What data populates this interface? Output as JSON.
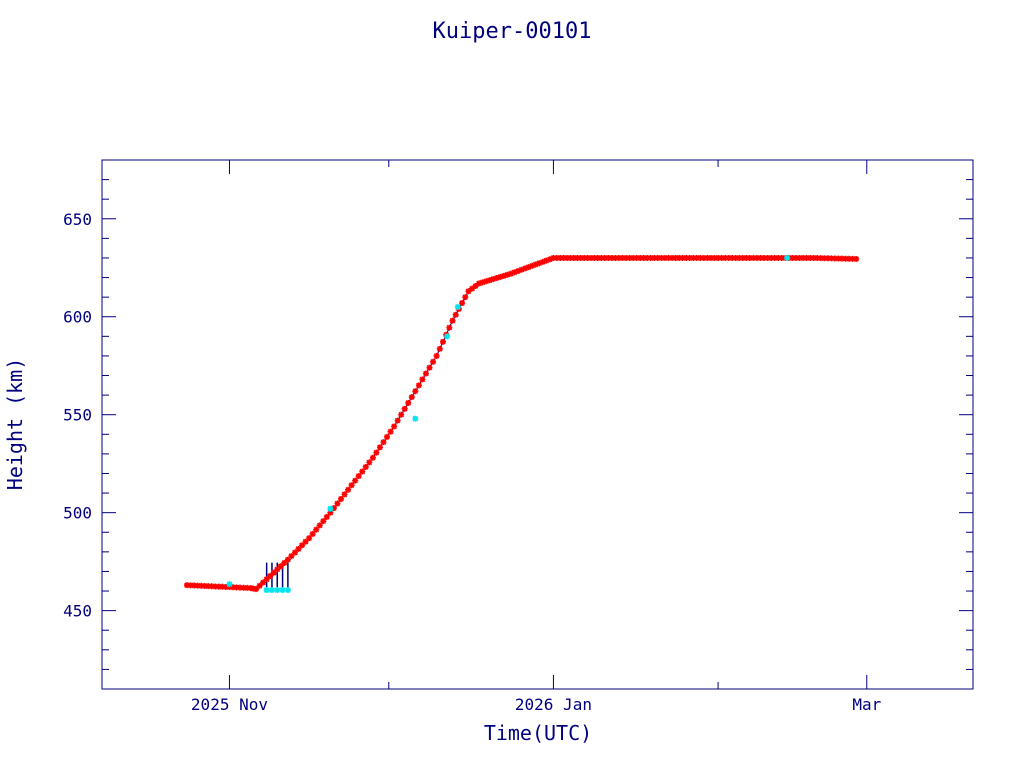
{
  "chart_data": {
    "type": "scatter",
    "title": "Kuiper-00101",
    "xlabel": "Time(UTC)",
    "ylabel": "Height (km)",
    "x_axis_type": "date",
    "xlim": [
      "2025-10-08",
      "2026-03-21"
    ],
    "ylim": [
      410,
      680
    ],
    "y_ticks": [
      450,
      500,
      550,
      600,
      650
    ],
    "x_ticks": [
      {
        "date": "2025-11-01",
        "label": "2025 Nov"
      },
      {
        "date": "2026-01-01",
        "label": "2026 Jan"
      },
      {
        "date": "2026-03-01",
        "label": "Mar"
      }
    ],
    "grid": false,
    "legend": "none",
    "colors": {
      "axes": "#00007f",
      "primary": "#ff0000",
      "secondary": "#00e5ee",
      "connector": "#00007f"
    },
    "series": [
      {
        "marker_color": "#ff0000",
        "x": [
          "2025-10-24",
          "2025-10-28",
          "2025-11-01",
          "2025-11-05",
          "2025-11-06",
          "2025-11-08",
          "2025-11-10",
          "2025-11-12",
          "2025-11-16",
          "2025-11-20",
          "2025-11-24",
          "2025-11-28",
          "2025-12-02",
          "2025-12-06",
          "2025-12-10",
          "2025-12-13",
          "2025-12-16",
          "2025-12-18",
          "2025-12-24",
          "2026-01-01",
          "2026-01-10",
          "2026-01-20",
          "2026-01-30",
          "2026-02-09",
          "2026-02-19",
          "2026-02-27"
        ],
        "y": [
          463,
          462.5,
          462,
          461.5,
          461,
          466,
          471,
          476,
          487,
          500,
          514,
          528,
          544,
          562,
          580,
          598,
          613,
          617,
          622,
          630,
          630,
          630,
          630,
          630,
          630,
          629.5
        ]
      },
      {
        "marker_color": "#00e5ee",
        "x": [
          "2025-11-01",
          "2025-11-08",
          "2025-11-09",
          "2025-11-10",
          "2025-11-11",
          "2025-11-12",
          "2025-11-20",
          "2025-12-06",
          "2025-12-12",
          "2025-12-14",
          "2026-02-14"
        ],
        "y": [
          463.5,
          460.5,
          460.5,
          460.5,
          460.5,
          460.5,
          502,
          548,
          590,
          605,
          630
        ]
      }
    ]
  }
}
